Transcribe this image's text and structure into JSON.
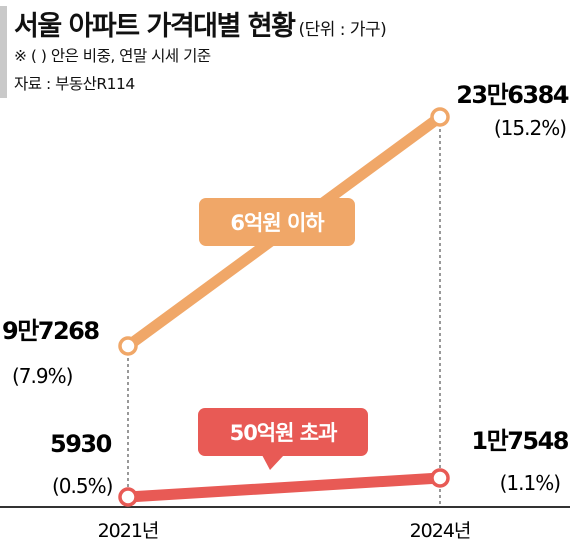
{
  "header": {
    "title": "서울 아파트 가격대별 현황",
    "unit": "(단위 : 가구)",
    "note": "※ (   ) 안은 비중, 연말 시세 기준",
    "source": "자료 : 부동산R114"
  },
  "colors": {
    "series_low": "#f0a768",
    "series_high": "#e85a55",
    "axis": "#333333",
    "guide": "#555555"
  },
  "chart_data": {
    "type": "line",
    "x": [
      "2021년",
      "2024년"
    ],
    "series": [
      {
        "name": "6억원 이하",
        "values": [
          97268,
          236384
        ],
        "labels": [
          "9만7268",
          "23만6384"
        ],
        "shares": [
          "(7.9%)",
          "(15.2%)"
        ]
      },
      {
        "name": "50억원 초과",
        "values": [
          5930,
          17548
        ],
        "labels": [
          "5930",
          "1만7548"
        ],
        "shares": [
          "(0.5%)",
          "(1.1%)"
        ]
      }
    ],
    "ylim": [
      0,
      240000
    ],
    "grid": false
  }
}
